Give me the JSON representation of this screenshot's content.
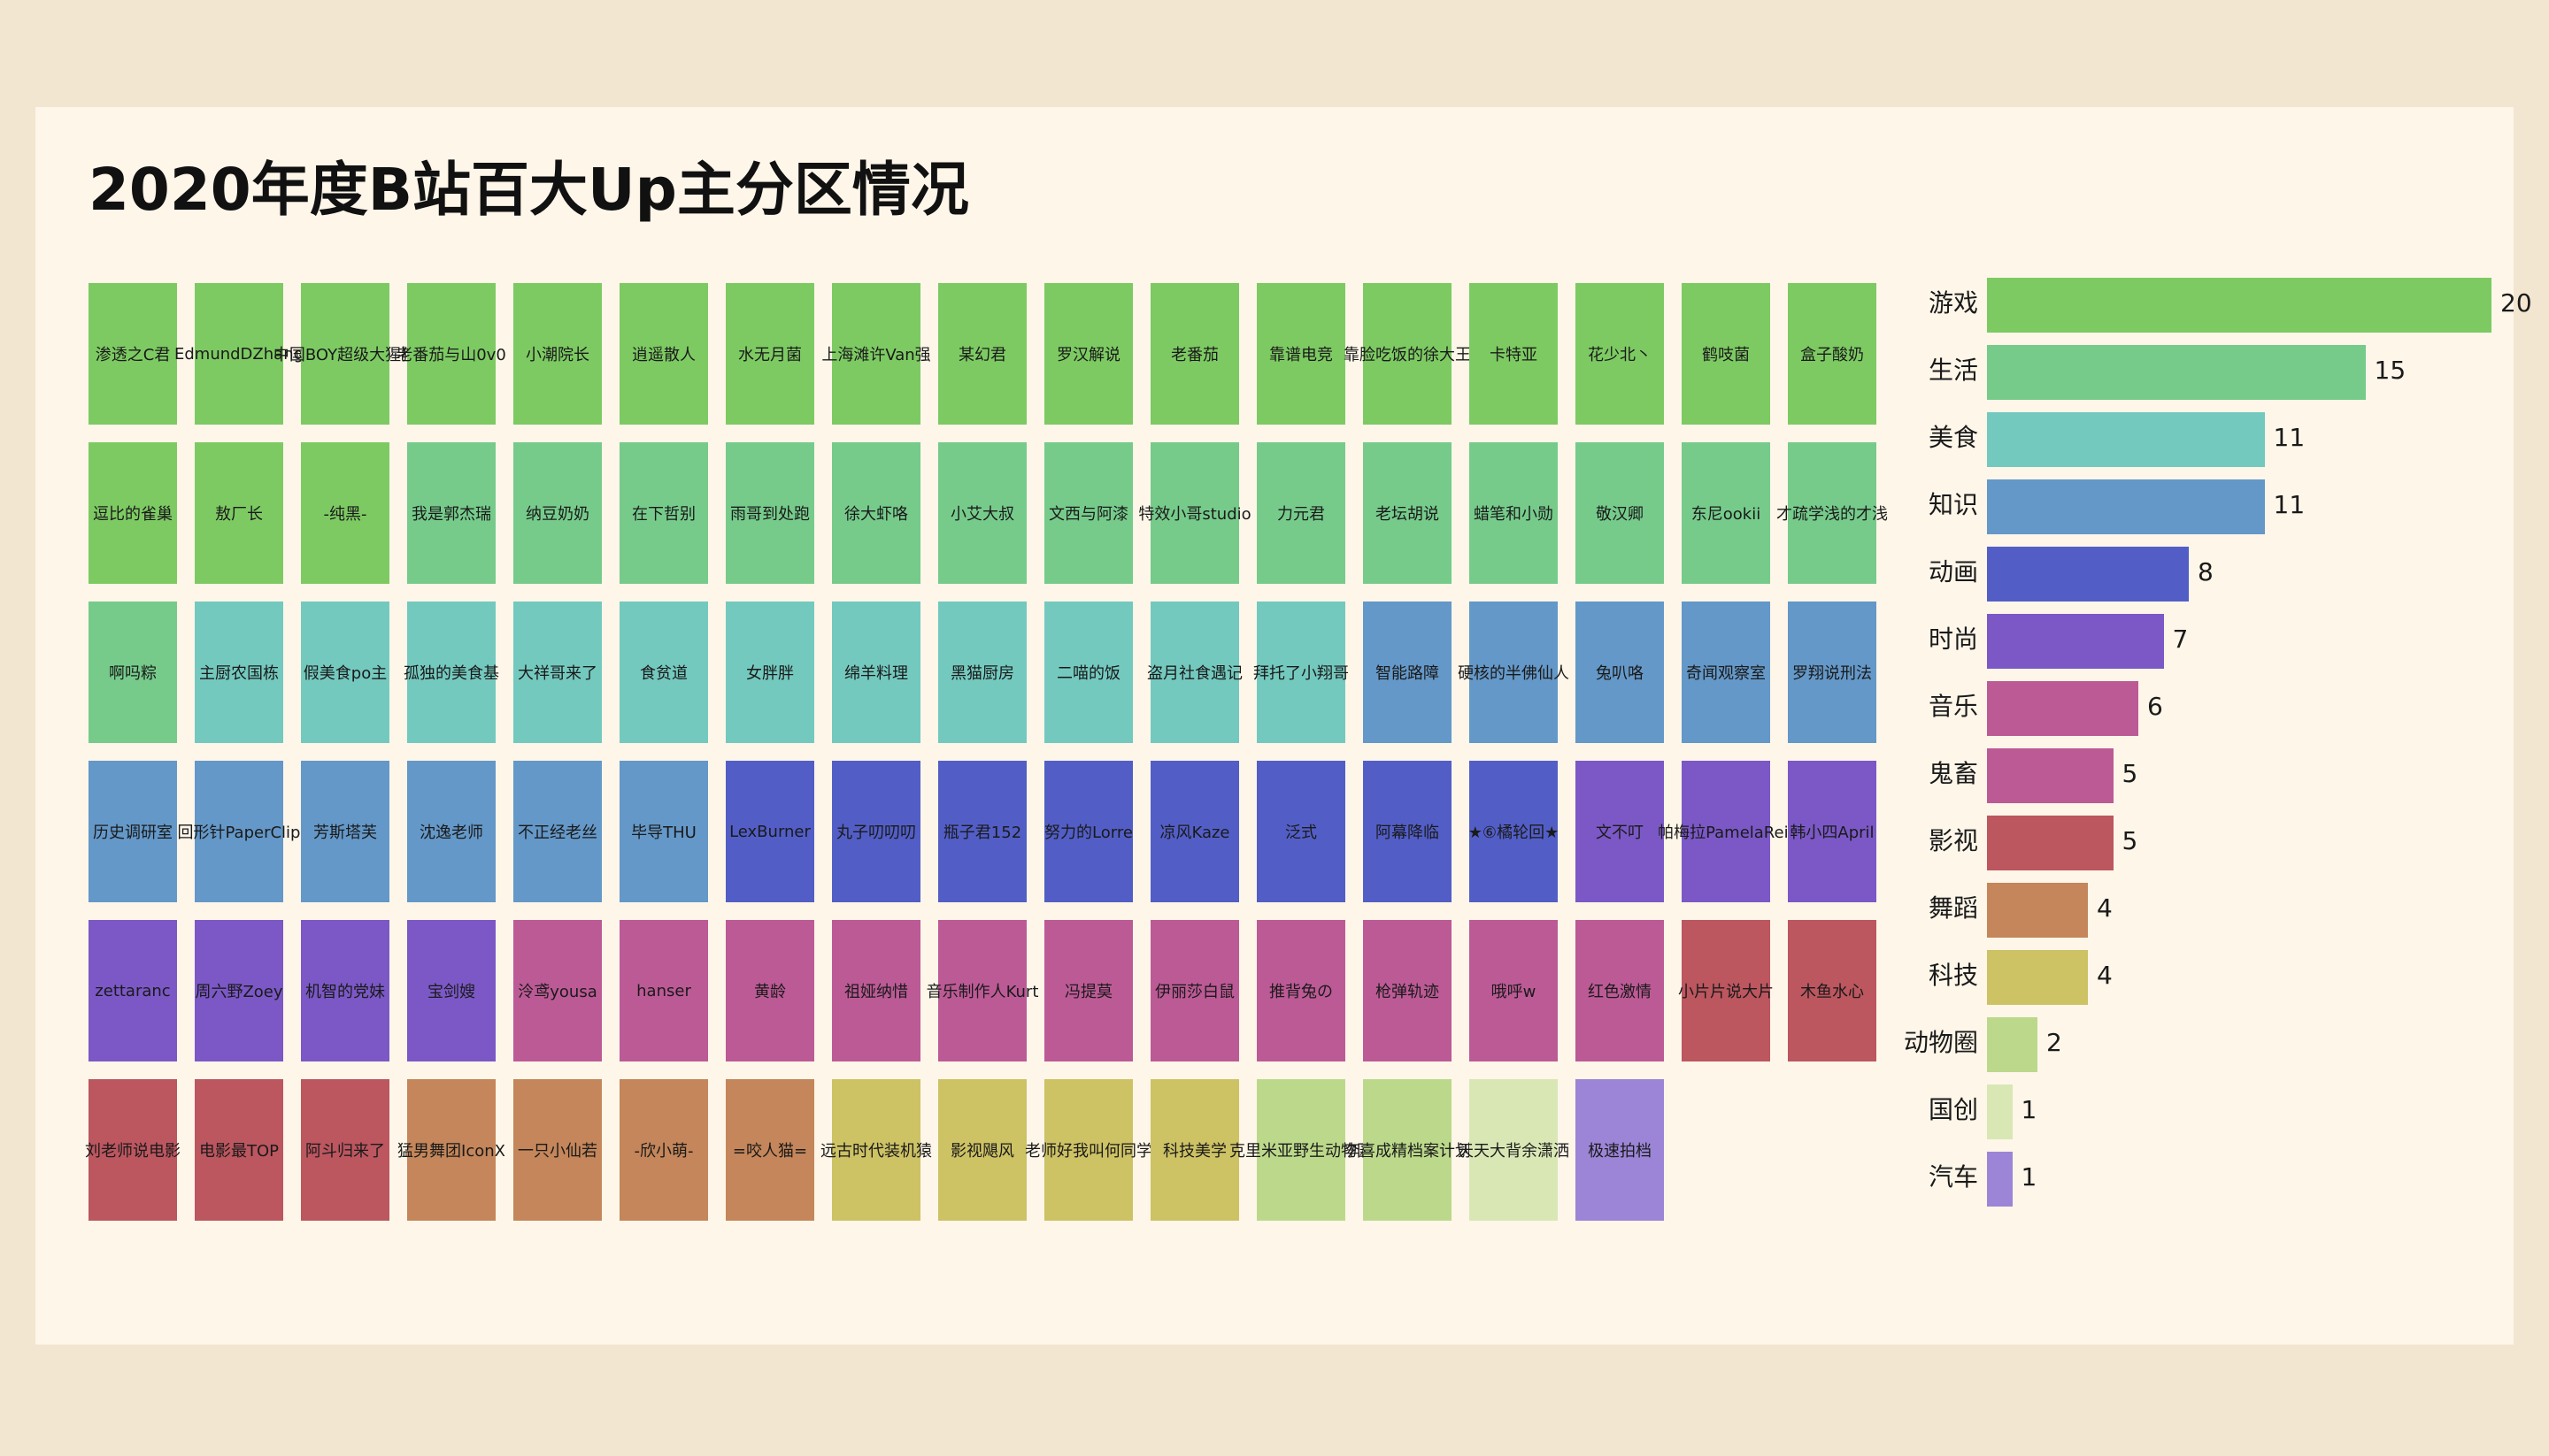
{
  "title": "2020年度B站百大Up主分区情况",
  "colors": {
    "游戏": "#7dca63",
    "生活": "#76cb8b",
    "美食": "#74c9bf",
    "知识": "#6498c8",
    "动画": "#525ec6",
    "时尚": "#7b58c6",
    "音乐": "#bc5a96",
    "鬼畜": "#bc5a96",
    "影视": "#bc565f",
    "舞蹈": "#c4865a",
    "科技": "#cdc264",
    "动物圈": "#bcd98b",
    "国创": "#d9e7b5",
    "汽车": "#9c85d7"
  },
  "chart_data": [
    {
      "type": "waffle",
      "title": "2020年度B站百大Up主分区情况",
      "tiles": [
        {
          "name": "渗透之C君",
          "category": "游戏"
        },
        {
          "name": "EdmundDZhang",
          "category": "游戏"
        },
        {
          "name": "中国BOY超级大猩猩",
          "category": "游戏"
        },
        {
          "name": "老番茄与山0v0",
          "category": "游戏"
        },
        {
          "name": "小潮院长",
          "category": "游戏"
        },
        {
          "name": "逍遥散人",
          "category": "游戏"
        },
        {
          "name": "水无月菌",
          "category": "游戏"
        },
        {
          "name": "上海滩许Van强",
          "category": "游戏"
        },
        {
          "name": "某幻君",
          "category": "游戏"
        },
        {
          "name": "罗汉解说",
          "category": "游戏"
        },
        {
          "name": "老番茄",
          "category": "游戏"
        },
        {
          "name": "靠谱电竞",
          "category": "游戏"
        },
        {
          "name": "靠脸吃饭的徐大王",
          "category": "游戏"
        },
        {
          "name": "卡特亚",
          "category": "游戏"
        },
        {
          "name": "花少北丶",
          "category": "游戏"
        },
        {
          "name": "鹤吱菌",
          "category": "游戏"
        },
        {
          "name": "盒子酸奶",
          "category": "游戏"
        },
        {
          "name": "逗比的雀巢",
          "category": "游戏"
        },
        {
          "name": "敖厂长",
          "category": "游戏"
        },
        {
          "name": "-纯黑-",
          "category": "游戏"
        },
        {
          "name": "我是郭杰瑞",
          "category": "生活"
        },
        {
          "name": "纳豆奶奶",
          "category": "生活"
        },
        {
          "name": "在下哲别",
          "category": "生活"
        },
        {
          "name": "雨哥到处跑",
          "category": "生活"
        },
        {
          "name": "徐大虾咯",
          "category": "生活"
        },
        {
          "name": "小艾大叔",
          "category": "生活"
        },
        {
          "name": "文西与阿漆",
          "category": "生活"
        },
        {
          "name": "特效小哥studio",
          "category": "生活"
        },
        {
          "name": "力元君",
          "category": "生活"
        },
        {
          "name": "老坛胡说",
          "category": "生活"
        },
        {
          "name": "蜡笔和小勋",
          "category": "生活"
        },
        {
          "name": "敬汉卿",
          "category": "生活"
        },
        {
          "name": "东尼ookii",
          "category": "生活"
        },
        {
          "name": "才疏学浅的才浅",
          "category": "生活"
        },
        {
          "name": "啊吗粽",
          "category": "生活"
        },
        {
          "name": "主厨农国栋",
          "category": "美食"
        },
        {
          "name": "假美食po主",
          "category": "美食"
        },
        {
          "name": "孤独的美食基",
          "category": "美食"
        },
        {
          "name": "大祥哥来了",
          "category": "美食"
        },
        {
          "name": "食贫道",
          "category": "美食"
        },
        {
          "name": "女胖胖",
          "category": "美食"
        },
        {
          "name": "绵羊料理",
          "category": "美食"
        },
        {
          "name": "黑猫厨房",
          "category": "美食"
        },
        {
          "name": "二喵的饭",
          "category": "美食"
        },
        {
          "name": "盗月社食遇记",
          "category": "美食"
        },
        {
          "name": "拜托了小翔哥",
          "category": "美食"
        },
        {
          "name": "智能路障",
          "category": "知识"
        },
        {
          "name": "硬核的半佛仙人",
          "category": "知识"
        },
        {
          "name": "兔叭咯",
          "category": "知识"
        },
        {
          "name": "奇闻观察室",
          "category": "知识"
        },
        {
          "name": "罗翔说刑法",
          "category": "知识"
        },
        {
          "name": "历史调研室",
          "category": "知识"
        },
        {
          "name": "回形针PaperClip",
          "category": "知识"
        },
        {
          "name": "芳斯塔芙",
          "category": "知识"
        },
        {
          "name": "沈逸老师",
          "category": "知识"
        },
        {
          "name": "不正经老丝",
          "category": "知识"
        },
        {
          "name": "毕导THU",
          "category": "知识"
        },
        {
          "name": "LexBurner",
          "category": "动画"
        },
        {
          "name": "丸子叨叨叨",
          "category": "动画"
        },
        {
          "name": "瓶子君152",
          "category": "动画"
        },
        {
          "name": "努力的Lorre",
          "category": "动画"
        },
        {
          "name": "凉风Kaze",
          "category": "动画"
        },
        {
          "name": "泛式",
          "category": "动画"
        },
        {
          "name": "阿幕降临",
          "category": "动画"
        },
        {
          "name": "★⑥橘轮回★",
          "category": "动画"
        },
        {
          "name": "文不叮",
          "category": "时尚"
        },
        {
          "name": "帕梅拉PamelaReif",
          "category": "时尚"
        },
        {
          "name": "韩小四April",
          "category": "时尚"
        },
        {
          "name": "zettaranc",
          "category": "时尚"
        },
        {
          "name": "周六野Zoey",
          "category": "时尚"
        },
        {
          "name": "机智的党妹",
          "category": "时尚"
        },
        {
          "name": "宝剑嫂",
          "category": "时尚"
        },
        {
          "name": "泠鸢yousa",
          "category": "音乐"
        },
        {
          "name": "hanser",
          "category": "音乐"
        },
        {
          "name": "黄龄",
          "category": "音乐"
        },
        {
          "name": "祖娅纳惜",
          "category": "音乐"
        },
        {
          "name": "音乐制作人Kurt",
          "category": "音乐"
        },
        {
          "name": "冯提莫",
          "category": "音乐"
        },
        {
          "name": "伊丽莎白鼠",
          "category": "鬼畜"
        },
        {
          "name": "推背兔の",
          "category": "鬼畜"
        },
        {
          "name": "枪弹轨迹",
          "category": "鬼畜"
        },
        {
          "name": "哦呼w",
          "category": "鬼畜"
        },
        {
          "name": "红色激情",
          "category": "鬼畜"
        },
        {
          "name": "小片片说大片",
          "category": "影视"
        },
        {
          "name": "木鱼水心",
          "category": "影视"
        },
        {
          "name": "刘老师说电影",
          "category": "影视"
        },
        {
          "name": "电影最TOP",
          "category": "影视"
        },
        {
          "name": "阿斗归来了",
          "category": "影视"
        },
        {
          "name": "猛男舞团IconX",
          "category": "舞蹈"
        },
        {
          "name": "一只小仙若",
          "category": "舞蹈"
        },
        {
          "name": "-欣小萌-",
          "category": "舞蹈"
        },
        {
          "name": "=咬人猫=",
          "category": "舞蹈"
        },
        {
          "name": "远古时代装机猿",
          "category": "科技"
        },
        {
          "name": "影视飓风",
          "category": "科技"
        },
        {
          "name": "老师好我叫何同学",
          "category": "科技"
        },
        {
          "name": "科技美学",
          "category": "科技"
        },
        {
          "name": "克里米亚野生动物园",
          "category": "动物圈"
        },
        {
          "name": "李喜成精档案计划",
          "category": "动物圈"
        },
        {
          "name": "天天大背余潇洒",
          "category": "国创"
        },
        {
          "name": "极速拍档",
          "category": "汽车"
        }
      ]
    },
    {
      "type": "bar",
      "orientation": "horizontal",
      "categories": [
        "游戏",
        "生活",
        "美食",
        "知识",
        "动画",
        "时尚",
        "音乐",
        "鬼畜",
        "影视",
        "舞蹈",
        "科技",
        "动物圈",
        "国创",
        "汽车"
      ],
      "values": [
        20,
        15,
        11,
        11,
        8,
        7,
        6,
        5,
        5,
        4,
        4,
        2,
        1,
        1
      ],
      "xlim": [
        0,
        20
      ]
    }
  ]
}
